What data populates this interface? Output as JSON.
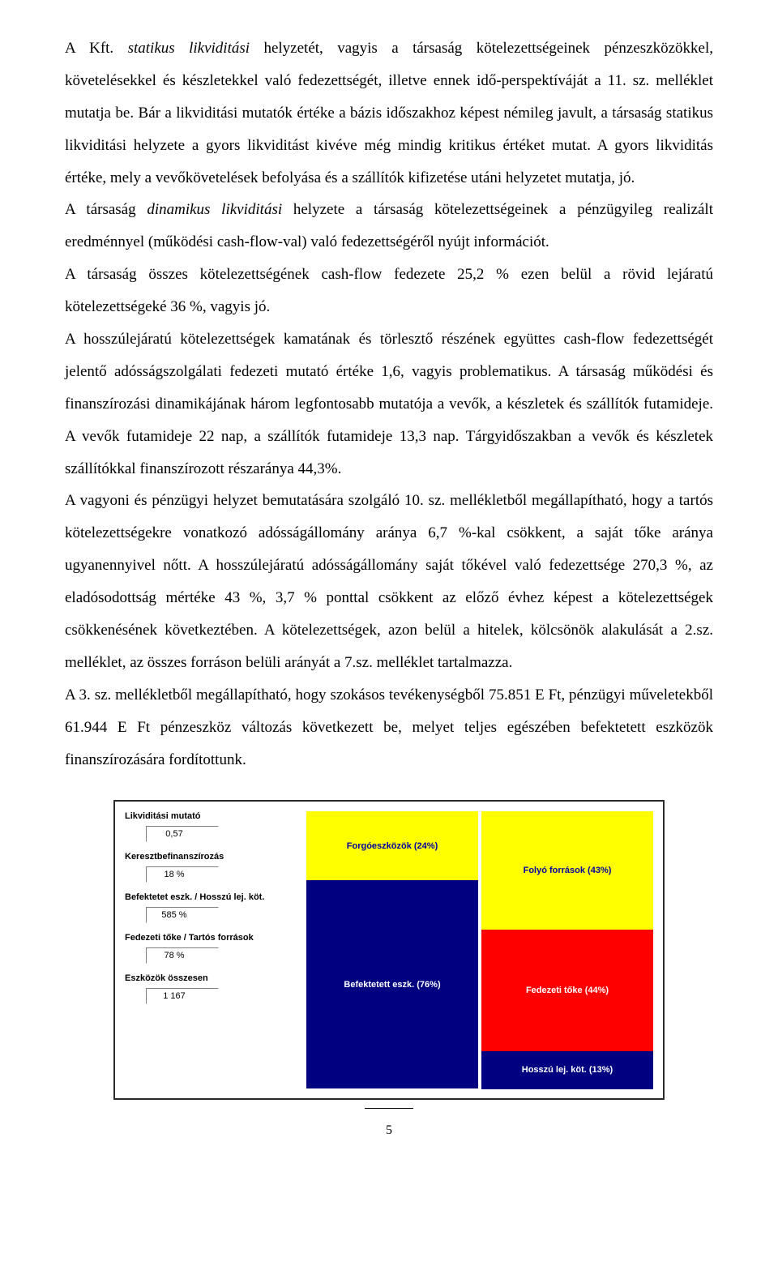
{
  "body": {
    "para": "A Kft. statikus likviditási helyzetét, vagyis a társaság kötelezettségeinek pénzeszközökkel, követelésekkel és készletekkel való fedezettségét, illetve ennek idő-perspektíváját a  11. sz. melléklet mutatja be. Bár a likviditási mutatók értéke a bázis időszakhoz képest  némileg javult,  a társaság statikus likviditási helyzete a gyors likviditást kivéve még mindig kritikus értéket mutat. A gyors likviditás értéke, mely a vevőkövetelések befolyása és a szállítók kifizetése utáni helyzetet mutatja, jó.\nA társaság dinamikus likviditási helyzete  a társaság kötelezettségeinek a pénzügyileg realizált eredménnyel (működési cash-flow-val) való fedezettségéről nyújt információt.\nA társaság  összes kötelezettségének  cash-flow fedezete 25,2 %  ezen belül a rövid lejáratú kötelezettségeké 36 %, vagyis jó.\nA hosszúlejáratú kötelezettségek kamatának és törlesztő részének együttes cash-flow fedezettségét jelentő adósságszolgálati fedezeti mutató értéke 1,6, vagyis problematikus. A társaság működési és finanszírozási dinamikájának három legfontosabb mutatója a vevők, a készletek és szállítók futamideje. A vevők futamideje  22 nap, a szállítók futamideje 13,3 nap. Tárgyidőszakban a vevők és készletek szállítókkal finanszírozott részaránya 44,3%.\nA vagyoni és pénzügyi helyzet bemutatására szolgáló 10. sz. mellékletből megállapítható, hogy a tartós kötelezettségekre vonatkozó  adósságállomány aránya 6,7 %-kal csökkent, a saját tőke aránya ugyanennyivel nőtt. A hosszúlejáratú adósságállomány saját tőkével való fedezettsége 270,3 %, az eladósodottság mértéke  43 %, 3,7 % ponttal csökkent  az előző évhez képest a kötelezettségek csökkenésének következtében. A kötelezettségek, azon belül a hitelek, kölcsönök alakulását a 2.sz. melléklet, az összes forráson belüli arányát a 7.sz. melléklet tartalmazza.\nA 3. sz. mellékletből megállapítható, hogy szokásos tevékenységből 75.851 E Ft, pénzügyi műveletekből 61.944 E Ft pénzeszköz változás következett be, melyet teljes egészében befektetett eszközök finanszírozására fordítottunk."
  },
  "metrics": [
    {
      "label": "Likviditási mutató",
      "value": "0,57"
    },
    {
      "label": "Keresztbefinanszírozás",
      "value": "18 %"
    },
    {
      "label": "Befektetet eszk. / Hosszú lej. köt.",
      "value": "585 %"
    },
    {
      "label": "Fedezeti tőke / Tartós források",
      "value": "78 %"
    },
    {
      "label": "Eszközök összesen",
      "value": "1 167"
    }
  ],
  "chart": {
    "colors": {
      "yellow": "#ffff00",
      "navy": "#000080",
      "red": "#ff0000"
    },
    "left_bar": [
      {
        "label": "Forgóeszközök (24%)",
        "pct": 24,
        "color": "yellow"
      },
      {
        "label": "Befektetett eszk. (76%)",
        "pct": 76,
        "color": "navy"
      }
    ],
    "right_bar": [
      {
        "label": "Folyó források (43%)",
        "pct": 43,
        "color": "yellow"
      },
      {
        "label": "Fedezeti tőke (44%)",
        "pct": 44,
        "color": "red"
      },
      {
        "label": "Hosszú lej. köt. (13%)",
        "pct": 13,
        "color": "navy"
      }
    ]
  },
  "page_number": "5"
}
